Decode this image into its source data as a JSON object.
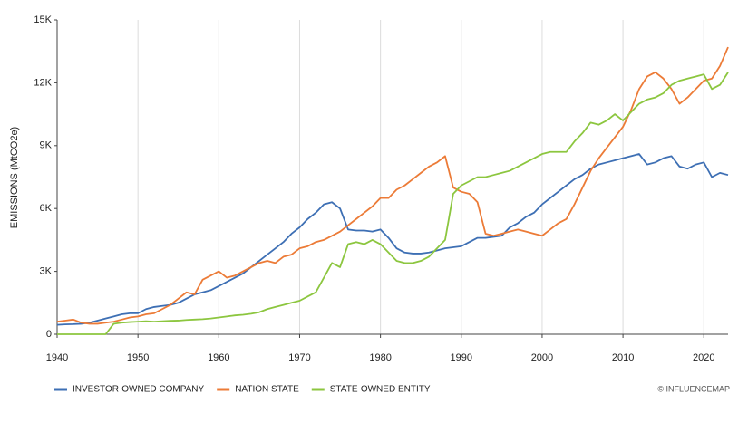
{
  "chart_data": {
    "type": "line",
    "ylabel": "EMISSIONS (MtCO2e)",
    "source": "© INFLUENCEMAP",
    "x": [
      1940,
      1941,
      1942,
      1943,
      1944,
      1945,
      1946,
      1947,
      1948,
      1949,
      1950,
      1951,
      1952,
      1953,
      1954,
      1955,
      1956,
      1957,
      1958,
      1959,
      1960,
      1961,
      1962,
      1963,
      1964,
      1965,
      1966,
      1967,
      1968,
      1969,
      1970,
      1971,
      1972,
      1973,
      1974,
      1975,
      1976,
      1977,
      1978,
      1979,
      1980,
      1981,
      1982,
      1983,
      1984,
      1985,
      1986,
      1987,
      1988,
      1989,
      1990,
      1991,
      1992,
      1993,
      1994,
      1995,
      1996,
      1997,
      1998,
      1999,
      2000,
      2001,
      2002,
      2003,
      2004,
      2005,
      2006,
      2007,
      2008,
      2009,
      2010,
      2011,
      2012,
      2013,
      2014,
      2015,
      2016,
      2017,
      2018,
      2019,
      2020,
      2021,
      2022,
      2023
    ],
    "series": [
      {
        "name": "INVESTOR-OWNED COMPANY",
        "color": "#3d6fb4",
        "values": [
          450,
          470,
          480,
          500,
          550,
          650,
          750,
          850,
          950,
          1000,
          1000,
          1200,
          1300,
          1350,
          1400,
          1500,
          1700,
          1900,
          2000,
          2100,
          2300,
          2500,
          2700,
          2900,
          3200,
          3500,
          3800,
          4100,
          4400,
          4800,
          5100,
          5500,
          5800,
          6200,
          6300,
          6000,
          5000,
          4950,
          4950,
          4900,
          5000,
          4600,
          4100,
          3900,
          3850,
          3850,
          3900,
          4000,
          4100,
          4150,
          4200,
          4400,
          4600,
          4600,
          4650,
          4700,
          5100,
          5300,
          5600,
          5800,
          6200,
          6500,
          6800,
          7100,
          7400,
          7600,
          7900,
          8100,
          8200,
          8300,
          8400,
          8500,
          8600,
          8100,
          8200,
          8400,
          8500,
          8000,
          7900,
          8100,
          8200,
          7500,
          7700,
          7600
        ]
      },
      {
        "name": "NATION STATE",
        "color": "#ec7b37",
        "values": [
          600,
          650,
          700,
          550,
          500,
          500,
          550,
          600,
          700,
          800,
          850,
          950,
          1000,
          1200,
          1400,
          1700,
          2000,
          1900,
          2600,
          2800,
          3000,
          2700,
          2800,
          3000,
          3200,
          3400,
          3500,
          3400,
          3700,
          3800,
          4100,
          4200,
          4400,
          4500,
          4700,
          4900,
          5200,
          5500,
          5800,
          6100,
          6500,
          6500,
          6900,
          7100,
          7400,
          7700,
          8000,
          8200,
          8500,
          7000,
          6800,
          6700,
          6300,
          4800,
          4700,
          4800,
          4900,
          5000,
          4900,
          4800,
          4700,
          5000,
          5300,
          5500,
          6200,
          7000,
          7800,
          8400,
          8900,
          9400,
          9900,
          10700,
          11700,
          12300,
          12500,
          12200,
          11700,
          11000,
          11300,
          11700,
          12100,
          12200,
          12800,
          13700
        ]
      },
      {
        "name": "STATE-OWNED ENTITY",
        "color": "#8cc63f",
        "values": [
          0,
          0,
          0,
          0,
          0,
          0,
          0,
          500,
          550,
          580,
          600,
          620,
          600,
          620,
          640,
          650,
          680,
          700,
          720,
          750,
          800,
          850,
          900,
          930,
          980,
          1050,
          1200,
          1300,
          1400,
          1500,
          1600,
          1800,
          2000,
          2700,
          3400,
          3200,
          4300,
          4400,
          4300,
          4500,
          4300,
          3900,
          3500,
          3400,
          3400,
          3500,
          3700,
          4100,
          4500,
          6700,
          7100,
          7300,
          7500,
          7500,
          7600,
          7700,
          7800,
          8000,
          8200,
          8400,
          8600,
          8700,
          8700,
          8700,
          9200,
          9600,
          10100,
          10000,
          10200,
          10500,
          10200,
          10600,
          11000,
          11200,
          11300,
          11500,
          11900,
          12100,
          12200,
          12300,
          12400,
          11700,
          11900,
          12500
        ]
      }
    ],
    "xlim": [
      1940,
      2023
    ],
    "xticks": [
      1940,
      1950,
      1960,
      1970,
      1980,
      1990,
      2000,
      2010,
      2020
    ],
    "ylim": [
      0,
      15000
    ],
    "yticks": [
      {
        "value": 0,
        "label": "0"
      },
      {
        "value": 3000,
        "label": "3K"
      },
      {
        "value": 6000,
        "label": "6K"
      },
      {
        "value": 9000,
        "label": "9K"
      },
      {
        "value": 12000,
        "label": "12K"
      },
      {
        "value": 15000,
        "label": "15K"
      }
    ],
    "grid": true
  }
}
